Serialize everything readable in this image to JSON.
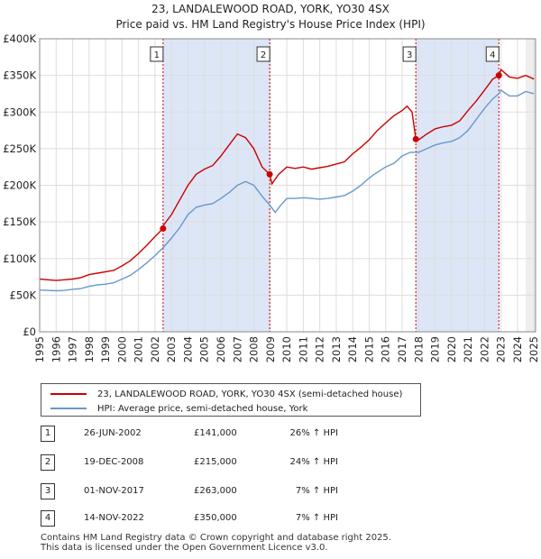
{
  "chart_data": {
    "type": "line",
    "title": "23, LANDALEWOOD ROAD, YORK, YO30 4SX",
    "subtitle": "Price paid vs. HM Land Registry's House Price Index (HPI)",
    "xlim": [
      1995,
      2025.1
    ],
    "ylim": [
      0,
      400000
    ],
    "y_ticks": [
      {
        "value": 0,
        "label": "£0"
      },
      {
        "value": 50000,
        "label": "£50K"
      },
      {
        "value": 100000,
        "label": "£100K"
      },
      {
        "value": 150000,
        "label": "£150K"
      },
      {
        "value": 200000,
        "label": "£200K"
      },
      {
        "value": 250000,
        "label": "£250K"
      },
      {
        "value": 300000,
        "label": "£300K"
      },
      {
        "value": 350000,
        "label": "£350K"
      },
      {
        "value": 400000,
        "label": "£400K"
      }
    ],
    "x_ticks": [
      "1995",
      "1996",
      "1997",
      "1998",
      "1999",
      "2000",
      "2001",
      "2002",
      "2003",
      "2004",
      "2005",
      "2006",
      "2007",
      "2008",
      "2009",
      "2010",
      "2011",
      "2012",
      "2013",
      "2014",
      "2015",
      "2016",
      "2017",
      "2018",
      "2019",
      "2020",
      "2021",
      "2022",
      "2023",
      "2024",
      "2025"
    ],
    "series": [
      {
        "name": "23, LANDALEWOOD ROAD, YORK, YO30 4SX (semi-detached house)",
        "color": "#cc0000",
        "x": [
          1995,
          1995.5,
          1996,
          1996.5,
          1997,
          1997.5,
          1998,
          1998.5,
          1999,
          1999.5,
          2000,
          2000.5,
          2001,
          2001.5,
          2002,
          2002.49,
          2002.5,
          2003,
          2003.5,
          2004,
          2004.5,
          2005,
          2005.5,
          2006,
          2006.5,
          2007,
          2007.5,
          2008,
          2008.5,
          2008.96,
          2009.1,
          2009.5,
          2010,
          2010.5,
          2011,
          2011.5,
          2012,
          2012.5,
          2013,
          2013.5,
          2014,
          2014.5,
          2015,
          2015.5,
          2016,
          2016.5,
          2017,
          2017.3,
          2017.6,
          2017.83,
          2018,
          2018.5,
          2019,
          2019.5,
          2020,
          2020.5,
          2021,
          2021.5,
          2022,
          2022.5,
          2022.87,
          2023,
          2023.5,
          2024,
          2024.5,
          2025
        ],
        "y": [
          72000,
          71000,
          70000,
          71000,
          72000,
          74000,
          78000,
          80000,
          82000,
          84000,
          90000,
          97000,
          107000,
          118000,
          130000,
          141000,
          145000,
          160000,
          180000,
          200000,
          215000,
          222000,
          227000,
          240000,
          255000,
          270000,
          265000,
          250000,
          225000,
          215000,
          202000,
          215000,
          225000,
          223000,
          225000,
          222000,
          224000,
          226000,
          229000,
          232000,
          243000,
          252000,
          262000,
          275000,
          285000,
          295000,
          302000,
          308000,
          300000,
          263000,
          262000,
          270000,
          277000,
          280000,
          282000,
          288000,
          302000,
          315000,
          330000,
          345000,
          350000,
          358000,
          348000,
          346000,
          350000,
          345000
        ]
      },
      {
        "name": "HPI: Average price, semi-detached house, York",
        "color": "#6699cc",
        "x": [
          1995,
          1995.5,
          1996,
          1996.5,
          1997,
          1997.5,
          1998,
          1998.5,
          1999,
          1999.5,
          2000,
          2000.5,
          2001,
          2001.5,
          2002,
          2002.5,
          2003,
          2003.5,
          2004,
          2004.5,
          2005,
          2005.5,
          2006,
          2006.5,
          2007,
          2007.5,
          2008,
          2008.5,
          2008.96,
          2009.3,
          2009.6,
          2010,
          2010.5,
          2011,
          2011.5,
          2012,
          2012.5,
          2013,
          2013.5,
          2014,
          2014.5,
          2015,
          2015.5,
          2016,
          2016.5,
          2017,
          2017.5,
          2017.83,
          2018,
          2018.5,
          2019,
          2019.5,
          2020,
          2020.5,
          2021,
          2021.5,
          2022,
          2022.5,
          2022.87,
          2023,
          2023.5,
          2024,
          2024.5,
          2025
        ],
        "y": [
          57000,
          56500,
          56000,
          56500,
          58000,
          59000,
          62000,
          64000,
          65000,
          67000,
          72000,
          77000,
          85000,
          94000,
          104000,
          115000,
          128000,
          142000,
          160000,
          170000,
          173000,
          175000,
          182000,
          190000,
          200000,
          205000,
          200000,
          185000,
          173000,
          163000,
          172000,
          182000,
          182000,
          183000,
          182000,
          181000,
          182000,
          184000,
          186000,
          192000,
          200000,
          210000,
          218000,
          225000,
          230000,
          240000,
          245000,
          245000,
          245000,
          250000,
          255000,
          258000,
          260000,
          265000,
          275000,
          290000,
          305000,
          318000,
          325000,
          330000,
          322000,
          322000,
          328000,
          325000
        ]
      }
    ],
    "transactions": [
      {
        "num": "1",
        "x": 2002.49,
        "y": 141000
      },
      {
        "num": "2",
        "x": 2008.96,
        "y": 215000
      },
      {
        "num": "3",
        "x": 2017.83,
        "y": 263000
      },
      {
        "num": "4",
        "x": 2022.87,
        "y": 350000
      }
    ]
  },
  "legend": {
    "property": "23, LANDALEWOOD ROAD, YORK, YO30 4SX (semi-detached house)",
    "hpi": "HPI: Average price, semi-detached house, York"
  },
  "table": [
    {
      "num": "1",
      "date": "26-JUN-2002",
      "price": "£141,000",
      "hpi": "26% ↑ HPI"
    },
    {
      "num": "2",
      "date": "19-DEC-2008",
      "price": "£215,000",
      "hpi": "24% ↑ HPI"
    },
    {
      "num": "3",
      "date": "01-NOV-2017",
      "price": "£263,000",
      "hpi": "7% ↑ HPI"
    },
    {
      "num": "4",
      "date": "14-NOV-2022",
      "price": "£350,000",
      "hpi": "7% ↑ HPI"
    }
  ],
  "footer": {
    "line1": "Contains HM Land Registry data © Crown copyright and database right 2025.",
    "line2": "This data is licensed under the Open Government Licence v3.0."
  },
  "colors": {
    "property": "#cc0000",
    "hpi": "#6699cc",
    "shade": "#dde6f7",
    "grid": "#dddddd"
  }
}
